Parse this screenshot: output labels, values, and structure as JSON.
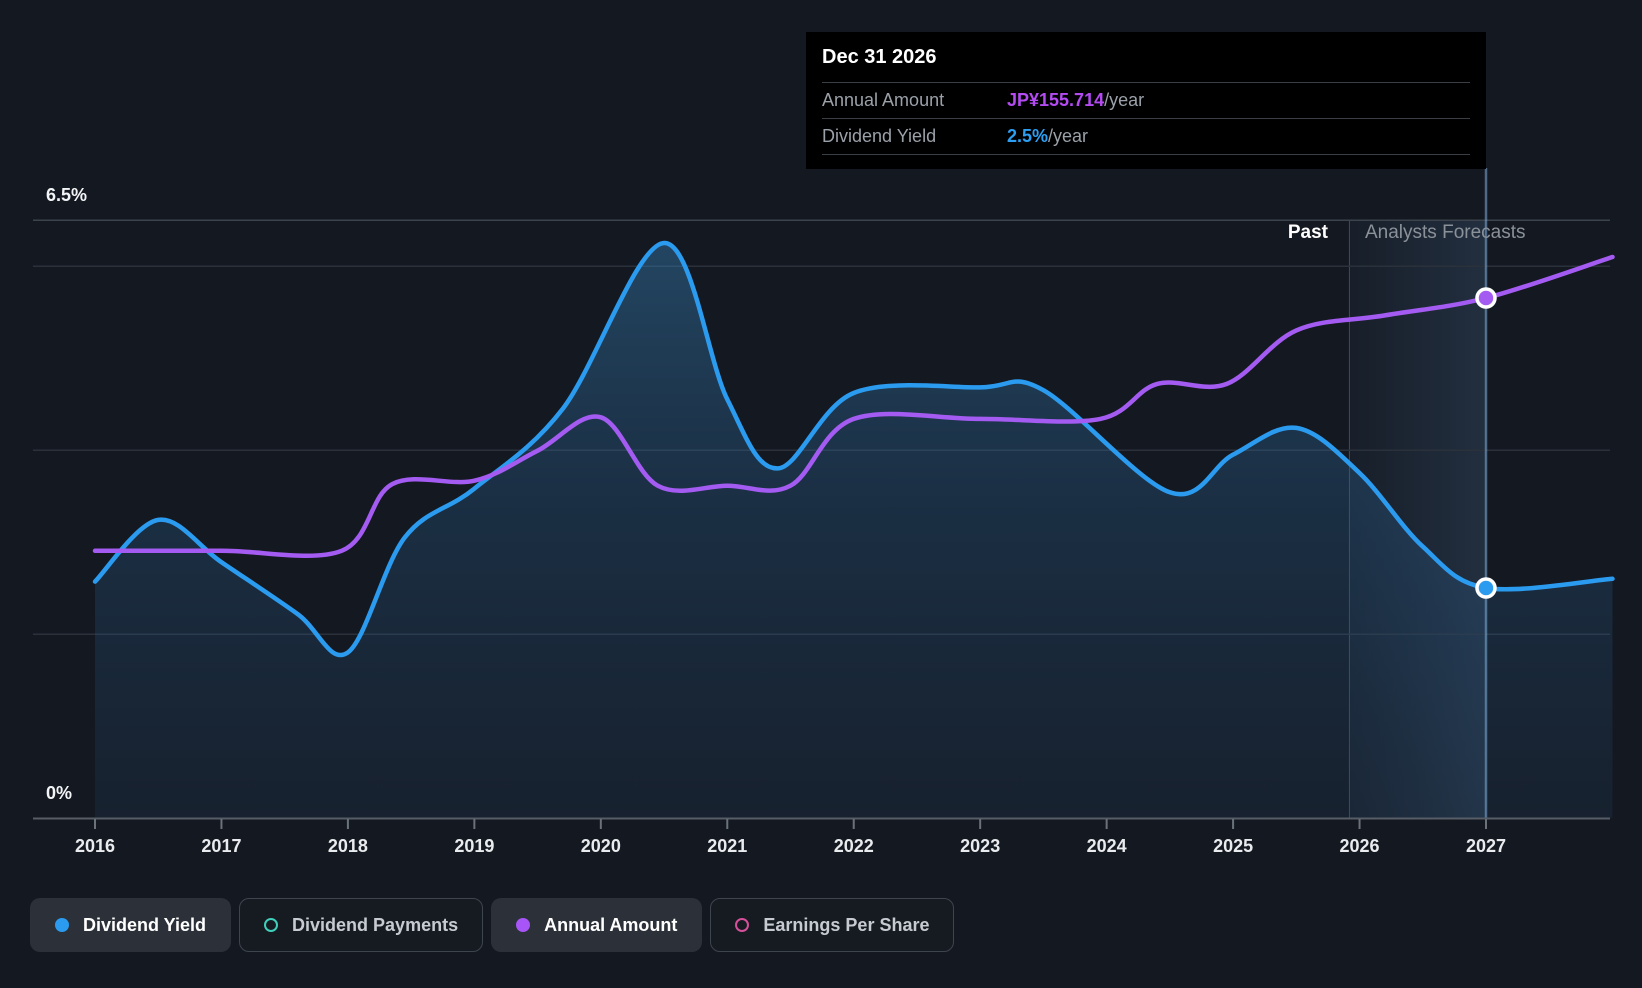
{
  "page": {
    "background": "#141820"
  },
  "tooltip": {
    "title": "Dec 31 2026",
    "rows": [
      {
        "label": "Annual Amount",
        "value": "JP¥155.714",
        "suffix": "/year",
        "value_color": "#b44bf2"
      },
      {
        "label": "Dividend Yield",
        "value": "2.5%",
        "suffix": "/year",
        "value_color": "#2d9ff2"
      }
    ]
  },
  "y_axis": {
    "top_label": "6.5%",
    "bottom_label": "0%"
  },
  "x_axis": {
    "years": [
      "2016",
      "2017",
      "2018",
      "2019",
      "2020",
      "2021",
      "2022",
      "2023",
      "2024",
      "2025",
      "2026",
      "2027"
    ]
  },
  "zones": {
    "past_label": "Past",
    "forecast_label": "Analysts Forecasts"
  },
  "legend": {
    "items": [
      {
        "label": "Dividend Yield",
        "style": "filled",
        "color": "#2b9bf0",
        "active": true
      },
      {
        "label": "Dividend Payments",
        "style": "ring",
        "color": "#40cfba",
        "active": false
      },
      {
        "label": "Annual Amount",
        "style": "filled",
        "color": "#a855f7",
        "active": true
      },
      {
        "label": "Earnings Per Share",
        "style": "ring",
        "color": "#d5509a",
        "active": false
      }
    ]
  },
  "chart_data": {
    "type": "line",
    "x_range": [
      2016,
      2028
    ],
    "y_axis_percent": {
      "min": 0,
      "max": 6.5,
      "gridlines_percent": [
        2,
        4,
        6
      ],
      "top_line_percent": 6.5
    },
    "band_start_year": 2025.92,
    "hover_year": 2027,
    "series": [
      {
        "name": "Dividend Yield",
        "unit": "%",
        "color": "#2b9bf0",
        "area": true,
        "scale": "percent",
        "points": [
          [
            2016.0,
            2.57
          ],
          [
            2016.5,
            3.24
          ],
          [
            2017.0,
            2.78
          ],
          [
            2017.6,
            2.22
          ],
          [
            2018.0,
            1.8
          ],
          [
            2018.45,
            3.05
          ],
          [
            2019.0,
            3.58
          ],
          [
            2019.7,
            4.45
          ],
          [
            2020.5,
            6.25
          ],
          [
            2021.0,
            4.55
          ],
          [
            2021.4,
            3.8
          ],
          [
            2022.0,
            4.62
          ],
          [
            2023.0,
            4.68
          ],
          [
            2023.5,
            4.65
          ],
          [
            2024.5,
            3.54
          ],
          [
            2025.0,
            3.95
          ],
          [
            2025.5,
            4.24
          ],
          [
            2026.0,
            3.75
          ],
          [
            2026.5,
            2.95
          ],
          [
            2027.0,
            2.5
          ],
          [
            2028.0,
            2.6
          ]
        ]
      },
      {
        "name": "Annual Amount",
        "unit": "JP¥/year",
        "color": "#a45bf2",
        "area": false,
        "scale": "amount",
        "points": [
          [
            2016.0,
            80
          ],
          [
            2017.0,
            80
          ],
          [
            2017.95,
            80
          ],
          [
            2018.35,
            100
          ],
          [
            2019.0,
            101
          ],
          [
            2019.5,
            110
          ],
          [
            2020.0,
            120
          ],
          [
            2020.45,
            99.5
          ],
          [
            2021.0,
            99.5
          ],
          [
            2021.5,
            99.5
          ],
          [
            2022.0,
            119.5
          ],
          [
            2023.0,
            119.5
          ],
          [
            2023.95,
            119.5
          ],
          [
            2024.4,
            130
          ],
          [
            2024.95,
            130
          ],
          [
            2025.5,
            146
          ],
          [
            2026.2,
            150.5
          ],
          [
            2027.0,
            155.714
          ],
          [
            2028.0,
            168
          ]
        ]
      }
    ],
    "markers": [
      {
        "series_index": 0,
        "year": 2027,
        "value": 2.5
      },
      {
        "series_index": 1,
        "year": 2027,
        "value": 155.714
      }
    ],
    "styles": {
      "gridline": "#2a313b",
      "top_line": "#3c434d",
      "axis_line": "#575d66",
      "tick": "#6b727a",
      "tick_label": "#e9ebee",
      "band_left": "rgba(90,150,210,0.05)",
      "band_right": "rgba(110,170,230,0.16)",
      "divider": "rgba(150,190,230,0.30)",
      "hover_line": "rgba(125,175,220,0.55)",
      "area_top": "rgba(56,132,188,0.42)",
      "area_mid": "rgba(42,100,150,0.30)",
      "area_bottom": "rgba(40,85,130,0.15)",
      "marker_ring": "#ffffff"
    }
  }
}
